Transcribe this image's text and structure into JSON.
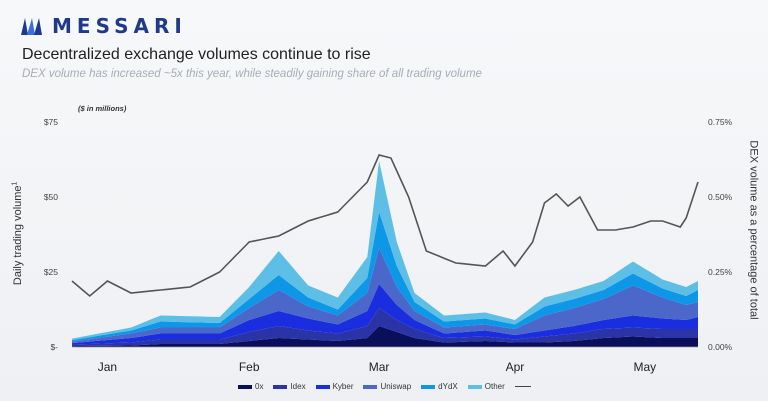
{
  "brand": {
    "name": "MESSARI",
    "logo_icon": "messari-logo-icon",
    "color": "#1f3a8a"
  },
  "header": {
    "title": "Decentralized exchange volumes continue to rise",
    "subtitle": "DEX volume has increased ~5x this year, while steadily gaining share of all trading volume"
  },
  "chart_data": {
    "type": "area",
    "stacked": true,
    "unit_note": "($ in millions)",
    "ylabel": "Daily trading volume",
    "ylabel_superscript": "1",
    "y2label": "DEX volume as a percentage of total",
    "ylim": [
      0,
      75
    ],
    "y_ticks": [
      0,
      25,
      50,
      75
    ],
    "y_tick_labels": [
      "$-",
      "$25",
      "$50",
      "$75"
    ],
    "y2lim": [
      0,
      0.75
    ],
    "y2_ticks": [
      0,
      0.25,
      0.5,
      0.75
    ],
    "y2_tick_labels": [
      "0.00%",
      "0.25%",
      "0.50%",
      "0.75%"
    ],
    "x_tick_labels": [
      "Jan",
      "Feb",
      "Mar",
      "Apr",
      "May"
    ],
    "x_tick_positions": [
      6,
      30,
      52,
      75,
      97
    ],
    "x_count": 107,
    "grid": false,
    "legend_position": "bottom",
    "series": [
      {
        "name": "0x",
        "color": "#0a0f5c",
        "anchors": [
          [
            0,
            0.3
          ],
          [
            10,
            0.5
          ],
          [
            15,
            1
          ],
          [
            25,
            1
          ],
          [
            30,
            2
          ],
          [
            35,
            3
          ],
          [
            40,
            2.5
          ],
          [
            45,
            2
          ],
          [
            50,
            3
          ],
          [
            52,
            7
          ],
          [
            55,
            5
          ],
          [
            58,
            3
          ],
          [
            63,
            1.5
          ],
          [
            70,
            2
          ],
          [
            75,
            1.5
          ],
          [
            80,
            1.5
          ],
          [
            85,
            2
          ],
          [
            90,
            3
          ],
          [
            95,
            3.5
          ],
          [
            100,
            3
          ],
          [
            104,
            3
          ],
          [
            106,
            3
          ]
        ]
      },
      {
        "name": "Idex",
        "color": "#2b34a6",
        "anchors": [
          [
            0,
            0.5
          ],
          [
            10,
            1
          ],
          [
            15,
            1.5
          ],
          [
            25,
            1.5
          ],
          [
            30,
            3
          ],
          [
            35,
            4
          ],
          [
            40,
            3
          ],
          [
            45,
            2.5
          ],
          [
            50,
            4
          ],
          [
            52,
            6
          ],
          [
            55,
            4
          ],
          [
            58,
            3
          ],
          [
            63,
            1.5
          ],
          [
            70,
            1.5
          ],
          [
            75,
            1
          ],
          [
            80,
            2
          ],
          [
            85,
            2.5
          ],
          [
            90,
            3
          ],
          [
            95,
            3
          ],
          [
            100,
            3
          ],
          [
            104,
            3
          ],
          [
            106,
            3
          ]
        ]
      },
      {
        "name": "Kyber",
        "color": "#1a2ee0",
        "anchors": [
          [
            0,
            0.5
          ],
          [
            10,
            1.5
          ],
          [
            15,
            2
          ],
          [
            25,
            2
          ],
          [
            30,
            4
          ],
          [
            35,
            5
          ],
          [
            40,
            4
          ],
          [
            45,
            3
          ],
          [
            50,
            5
          ],
          [
            52,
            8
          ],
          [
            55,
            5
          ],
          [
            58,
            3
          ],
          [
            63,
            1.5
          ],
          [
            70,
            2
          ],
          [
            75,
            1.5
          ],
          [
            80,
            2
          ],
          [
            85,
            2.5
          ],
          [
            90,
            3
          ],
          [
            95,
            4
          ],
          [
            100,
            3.5
          ],
          [
            104,
            3
          ],
          [
            106,
            4
          ]
        ]
      },
      {
        "name": "Uniswap",
        "color": "#4a67c9",
        "anchors": [
          [
            0,
            0.5
          ],
          [
            10,
            1.5
          ],
          [
            15,
            2
          ],
          [
            25,
            2
          ],
          [
            30,
            4
          ],
          [
            35,
            7
          ],
          [
            40,
            4
          ],
          [
            45,
            3
          ],
          [
            50,
            6
          ],
          [
            52,
            12
          ],
          [
            55,
            6
          ],
          [
            58,
            3
          ],
          [
            63,
            2
          ],
          [
            70,
            2
          ],
          [
            75,
            2
          ],
          [
            80,
            5
          ],
          [
            85,
            6
          ],
          [
            90,
            7
          ],
          [
            95,
            10
          ],
          [
            100,
            7
          ],
          [
            104,
            5
          ],
          [
            106,
            5
          ]
        ]
      },
      {
        "name": "dYdX",
        "color": "#0e97e6",
        "anchors": [
          [
            0,
            0.5
          ],
          [
            10,
            1
          ],
          [
            15,
            2
          ],
          [
            25,
            1.5
          ],
          [
            30,
            3
          ],
          [
            35,
            5
          ],
          [
            40,
            3
          ],
          [
            45,
            2
          ],
          [
            50,
            5
          ],
          [
            52,
            12
          ],
          [
            55,
            7
          ],
          [
            58,
            3
          ],
          [
            63,
            2
          ],
          [
            70,
            2
          ],
          [
            75,
            1.5
          ],
          [
            80,
            3
          ],
          [
            85,
            3
          ],
          [
            90,
            3
          ],
          [
            95,
            4
          ],
          [
            100,
            3
          ],
          [
            104,
            3
          ],
          [
            106,
            4
          ]
        ]
      },
      {
        "name": "Other",
        "color": "#5dbfe6",
        "anchors": [
          [
            0,
            0.5
          ],
          [
            10,
            1
          ],
          [
            15,
            2
          ],
          [
            25,
            2
          ],
          [
            30,
            4
          ],
          [
            35,
            8
          ],
          [
            40,
            4
          ],
          [
            45,
            4
          ],
          [
            50,
            7
          ],
          [
            52,
            17
          ],
          [
            55,
            8
          ],
          [
            58,
            3
          ],
          [
            63,
            2
          ],
          [
            70,
            2
          ],
          [
            75,
            1.5
          ],
          [
            80,
            3
          ],
          [
            85,
            3
          ],
          [
            90,
            3
          ],
          [
            95,
            4
          ],
          [
            100,
            3
          ],
          [
            104,
            3
          ],
          [
            106,
            3
          ]
        ]
      }
    ],
    "line_series": {
      "name": "",
      "color": "#555555",
      "anchors": [
        [
          0,
          0.22
        ],
        [
          3,
          0.17
        ],
        [
          6,
          0.22
        ],
        [
          10,
          0.18
        ],
        [
          15,
          0.19
        ],
        [
          20,
          0.2
        ],
        [
          25,
          0.25
        ],
        [
          30,
          0.35
        ],
        [
          35,
          0.37
        ],
        [
          40,
          0.42
        ],
        [
          45,
          0.45
        ],
        [
          50,
          0.55
        ],
        [
          52,
          0.64
        ],
        [
          54,
          0.63
        ],
        [
          57,
          0.5
        ],
        [
          60,
          0.32
        ],
        [
          65,
          0.28
        ],
        [
          70,
          0.27
        ],
        [
          73,
          0.32
        ],
        [
          75,
          0.27
        ],
        [
          78,
          0.35
        ],
        [
          80,
          0.48
        ],
        [
          82,
          0.51
        ],
        [
          84,
          0.47
        ],
        [
          86,
          0.5
        ],
        [
          89,
          0.39
        ],
        [
          92,
          0.39
        ],
        [
          95,
          0.4
        ],
        [
          98,
          0.42
        ],
        [
          100,
          0.42
        ],
        [
          103,
          0.4
        ],
        [
          104,
          0.43
        ],
        [
          106,
          0.55
        ]
      ]
    }
  }
}
